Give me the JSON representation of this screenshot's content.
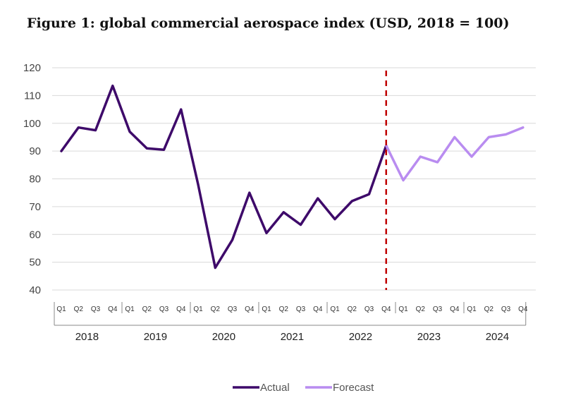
{
  "chart_data": {
    "type": "line",
    "title": "Figure 1: global commercial aerospace index (USD, 2018 = 100)",
    "ylim": [
      40,
      120
    ],
    "yticks": [
      40,
      50,
      60,
      70,
      80,
      90,
      100,
      110,
      120
    ],
    "grid": true,
    "years": [
      "2018",
      "2019",
      "2020",
      "2021",
      "2022",
      "2023",
      "2024"
    ],
    "quarters": [
      "Q1",
      "Q2",
      "Q3",
      "Q4"
    ],
    "series": [
      {
        "name": "Actual",
        "color": "#3e0a6a",
        "x": [
          "2018 Q1",
          "2018 Q2",
          "2018 Q3",
          "2018 Q4",
          "2019 Q1",
          "2019 Q2",
          "2019 Q3",
          "2019 Q4",
          "2020 Q1",
          "2020 Q2",
          "2020 Q3",
          "2020 Q4",
          "2021 Q1",
          "2021 Q2",
          "2021 Q3",
          "2021 Q4",
          "2022 Q1",
          "2022 Q2",
          "2022 Q3",
          "2022 Q4"
        ],
        "values": [
          90,
          98.5,
          97.5,
          113.5,
          97,
          91,
          90.5,
          105,
          78,
          48,
          58,
          75,
          60.5,
          68,
          63.5,
          73,
          65.5,
          72,
          74.5,
          92
        ]
      },
      {
        "name": "Forecast",
        "color": "#b98cf0",
        "x": [
          "2022 Q4",
          "2023 Q1",
          "2023 Q2",
          "2023 Q3",
          "2023 Q4",
          "2024 Q1",
          "2024 Q2",
          "2024 Q3",
          "2024 Q4"
        ],
        "values": [
          92,
          79.5,
          88,
          86,
          95,
          88,
          95,
          96,
          98.5
        ]
      }
    ],
    "forecast_divider_after": "2022 Q4",
    "legend": {
      "position": "bottom-center",
      "items": [
        "Actual",
        "Forecast"
      ]
    }
  }
}
